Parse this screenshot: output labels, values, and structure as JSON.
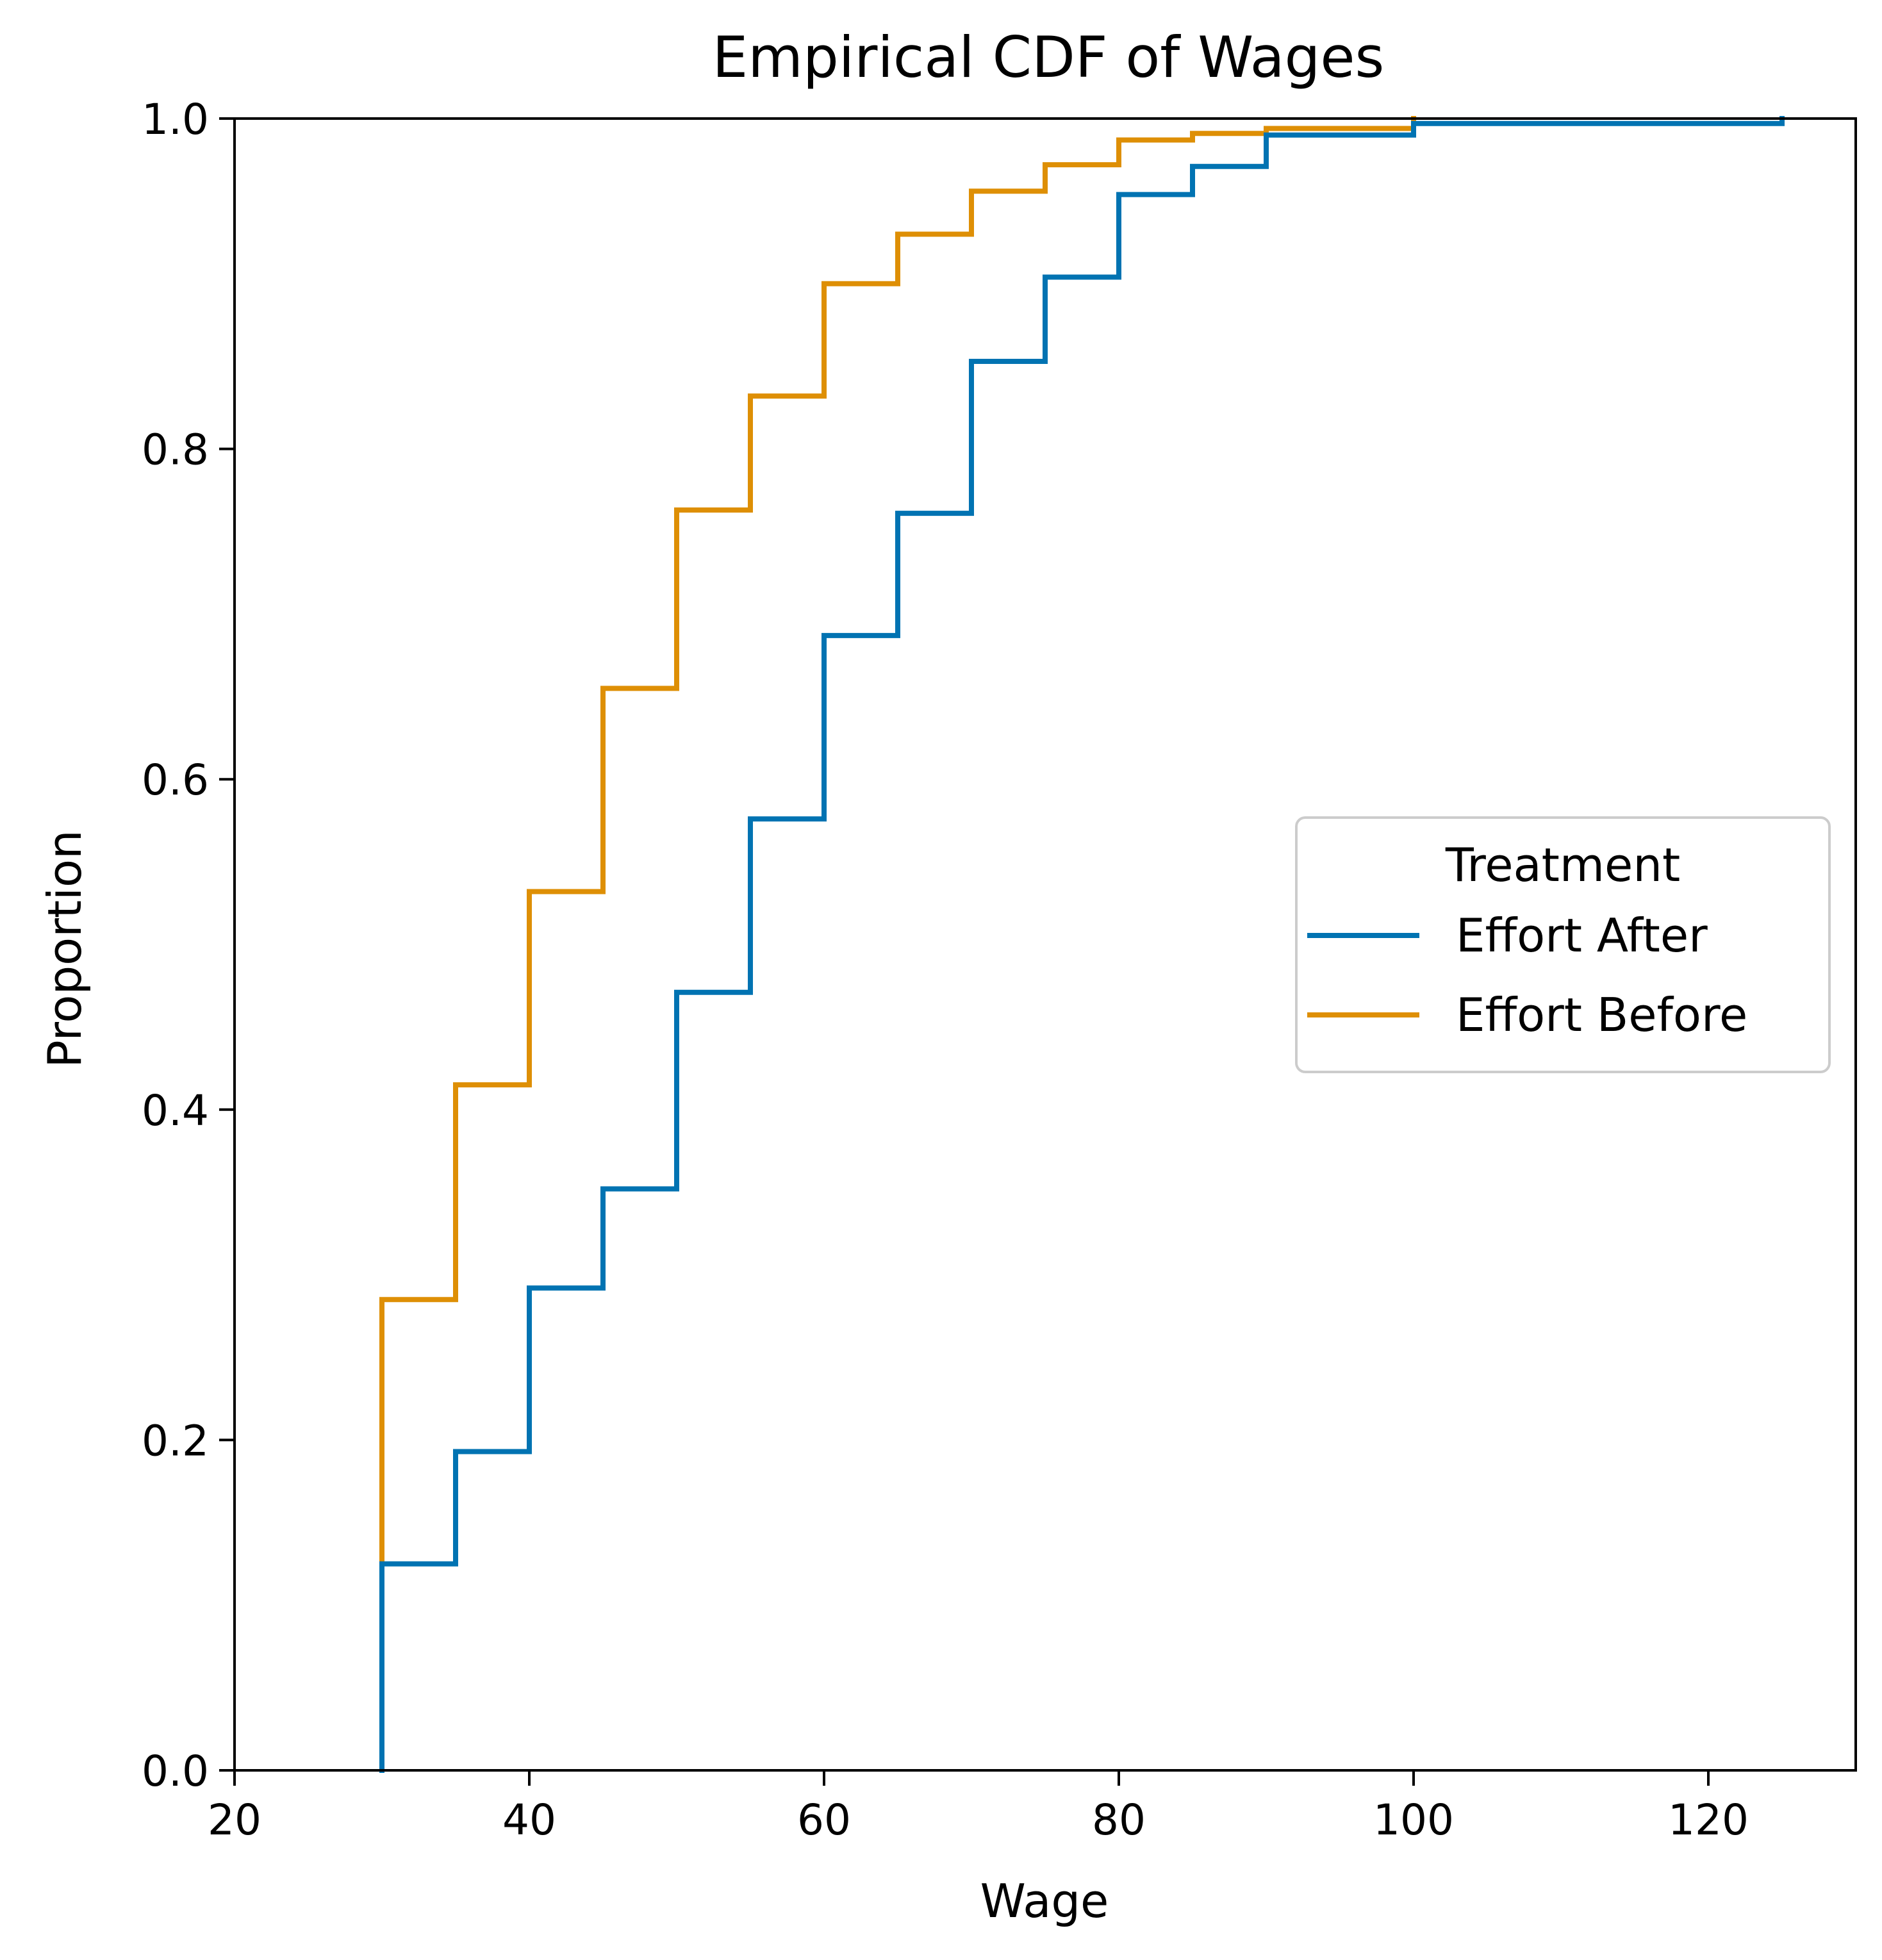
{
  "chart_data": {
    "type": "line",
    "title": "Empirical CDF of Wages",
    "xlabel": "Wage",
    "ylabel": "Proportion",
    "xlim": [
      20,
      130
    ],
    "ylim": [
      0,
      1
    ],
    "xticks": [
      20,
      40,
      60,
      80,
      100,
      120
    ],
    "yticks": [
      0.0,
      0.2,
      0.4,
      0.6,
      0.8,
      1.0
    ],
    "xtick_labels": [
      "20",
      "40",
      "60",
      "80",
      "100",
      "120"
    ],
    "ytick_labels": [
      "0.0",
      "0.2",
      "0.4",
      "0.6",
      "0.8",
      "1.0"
    ],
    "grid": false,
    "legend": {
      "title": "Treatment",
      "placement": "center-right"
    },
    "series": [
      {
        "name": "Effort After",
        "color": "#0173b2",
        "x": [
          30,
          35,
          40,
          45,
          50,
          55,
          60,
          65,
          70,
          75,
          80,
          85,
          90,
          100,
          125
        ],
        "y": [
          0.125,
          0.193,
          0.292,
          0.352,
          0.471,
          0.576,
          0.687,
          0.761,
          0.853,
          0.904,
          0.954,
          0.971,
          0.99,
          0.997,
          1.0
        ]
      },
      {
        "name": "Effort Before",
        "color": "#de8f05",
        "x": [
          30,
          35,
          40,
          45,
          50,
          55,
          60,
          65,
          70,
          75,
          80,
          85,
          90,
          100
        ],
        "y": [
          0.285,
          0.415,
          0.532,
          0.655,
          0.763,
          0.832,
          0.9,
          0.93,
          0.956,
          0.972,
          0.987,
          0.991,
          0.994,
          1.0
        ]
      }
    ]
  }
}
